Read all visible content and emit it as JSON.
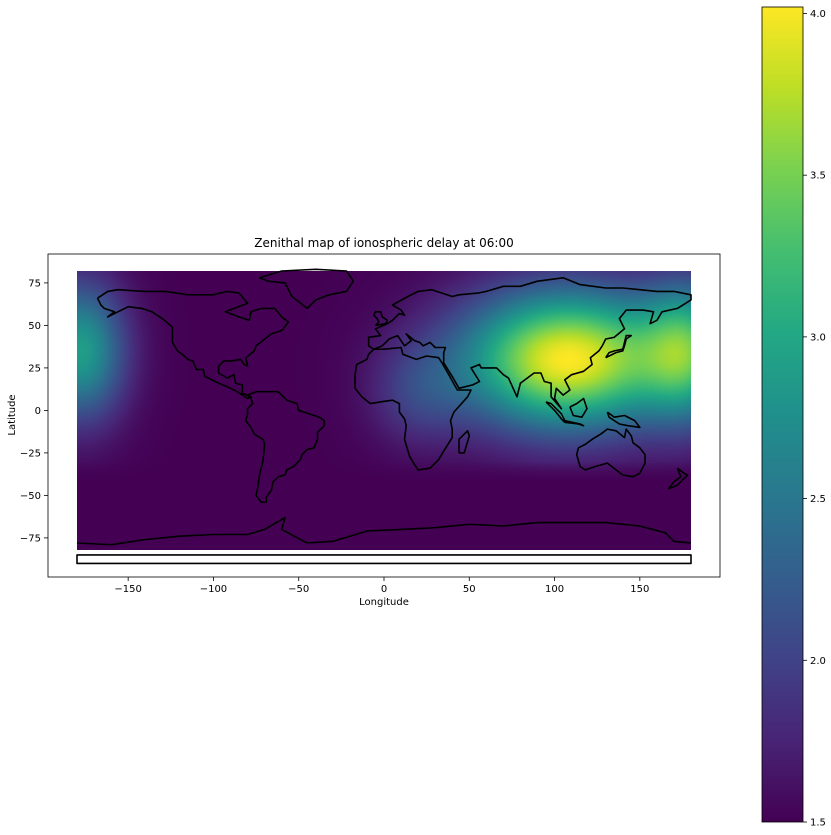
{
  "chart_data": {
    "type": "heatmap",
    "title": "Zenithal map of ionospheric delay at 06:00",
    "xlabel": "Longitude",
    "ylabel": "Latitude",
    "xlim": [
      -197,
      197
    ],
    "ylim": [
      -98,
      92
    ],
    "x_ticks": [
      -150,
      -100,
      -50,
      0,
      50,
      100,
      150
    ],
    "y_ticks": [
      75,
      50,
      25,
      0,
      -25,
      -50,
      -75
    ],
    "x_tick_labels": [
      "−150",
      "−100",
      "−50",
      "0",
      "50",
      "100",
      "150"
    ],
    "y_tick_labels": [
      "75",
      "50",
      "25",
      "0",
      "−25",
      "−50",
      "−75"
    ],
    "data_extent": {
      "lon": [
        -180,
        180
      ],
      "lat": [
        -82,
        82
      ]
    },
    "colorbar": {
      "colormap": "viridis",
      "range": [
        1.5,
        4.02
      ],
      "ticks": [
        1.5,
        2.0,
        2.5,
        3.0,
        3.5,
        4.0
      ],
      "tick_labels": [
        "1.5",
        "2.0",
        "2.5",
        "3.0",
        "3.5",
        "4.0"
      ]
    },
    "field": {
      "base": 1.5,
      "peaks": [
        {
          "lon": 108,
          "lat": 30,
          "value": 4.02
        },
        {
          "lon": -178,
          "lat": 35,
          "value": 2.9
        },
        {
          "lon": 178,
          "lat": 35,
          "value": 2.9
        },
        {
          "lon": 20,
          "lat": 10,
          "value": 1.9
        }
      ]
    },
    "grid": false,
    "colors": {
      "outline": "#000000",
      "background": "#ffffff"
    }
  }
}
